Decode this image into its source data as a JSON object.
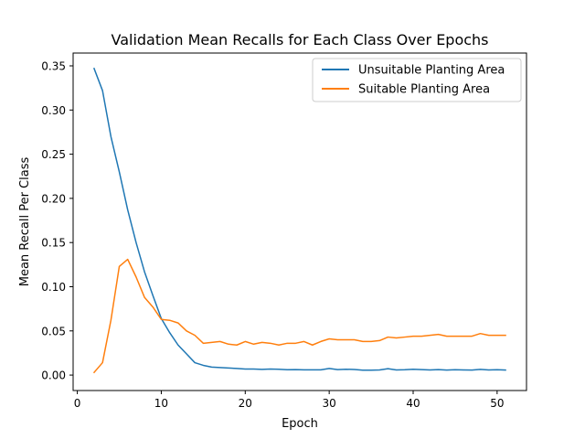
{
  "chart_data": {
    "type": "line",
    "title": "Validation Mean Recalls for Each Class Over Epochs",
    "xlabel": "Epoch",
    "ylabel": "Mean Recall Per Class",
    "xlim": [
      -0.5,
      53.5
    ],
    "ylim": [
      -0.0175,
      0.3645
    ],
    "xticks": [
      0,
      10,
      20,
      30,
      40,
      50
    ],
    "xtick_labels": [
      "0",
      "10",
      "20",
      "30",
      "40",
      "50"
    ],
    "yticks": [
      0.0,
      0.05,
      0.1,
      0.15,
      0.2,
      0.25,
      0.3,
      0.35
    ],
    "ytick_labels": [
      "0.00",
      "0.05",
      "0.10",
      "0.15",
      "0.20",
      "0.25",
      "0.30",
      "0.35"
    ],
    "grid": false,
    "legend_position": "upper-right",
    "x": [
      2,
      3,
      4,
      5,
      6,
      7,
      8,
      9,
      10,
      11,
      12,
      13,
      14,
      15,
      16,
      17,
      18,
      19,
      20,
      21,
      22,
      23,
      24,
      25,
      26,
      27,
      28,
      29,
      30,
      31,
      32,
      33,
      34,
      35,
      36,
      37,
      38,
      39,
      40,
      41,
      42,
      43,
      44,
      45,
      46,
      47,
      48,
      49,
      50,
      51
    ],
    "series": [
      {
        "name": "Unsuitable Planting Area",
        "color": "#1f77b4",
        "values": [
          0.347,
          0.322,
          0.27,
          0.23,
          0.187,
          0.15,
          0.117,
          0.09,
          0.064,
          0.048,
          0.034,
          0.024,
          0.014,
          0.011,
          0.009,
          0.0085,
          0.008,
          0.0075,
          0.0068,
          0.0068,
          0.0065,
          0.0068,
          0.0066,
          0.006,
          0.0062,
          0.0059,
          0.0059,
          0.0059,
          0.0075,
          0.0062,
          0.0066,
          0.0063,
          0.0055,
          0.0055,
          0.0058,
          0.0072,
          0.0058,
          0.006,
          0.0066,
          0.0062,
          0.0058,
          0.0062,
          0.0057,
          0.006,
          0.0058,
          0.0057,
          0.0065,
          0.0058,
          0.006,
          0.0057
        ]
      },
      {
        "name": "Suitable Planting Area",
        "color": "#ff7f0e",
        "values": [
          0.003,
          0.014,
          0.062,
          0.123,
          0.131,
          0.111,
          0.088,
          0.077,
          0.063,
          0.062,
          0.059,
          0.05,
          0.045,
          0.036,
          0.037,
          0.038,
          0.035,
          0.034,
          0.038,
          0.035,
          0.037,
          0.036,
          0.034,
          0.036,
          0.036,
          0.038,
          0.034,
          0.038,
          0.041,
          0.04,
          0.04,
          0.04,
          0.038,
          0.038,
          0.039,
          0.043,
          0.042,
          0.043,
          0.044,
          0.044,
          0.045,
          0.046,
          0.044,
          0.044,
          0.044,
          0.044,
          0.047,
          0.045,
          0.045,
          0.045
        ]
      }
    ]
  }
}
